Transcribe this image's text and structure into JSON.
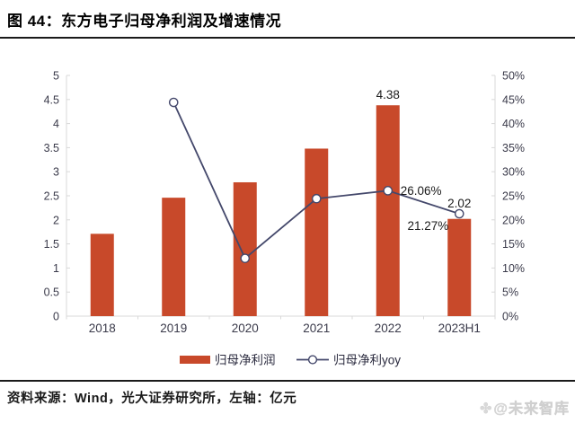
{
  "header": {
    "figure_label": "图 44：东方电子归母净利润及增速情况"
  },
  "footer": {
    "source": "资料来源：Wind，光大证券研究所，左轴：亿元",
    "watermark_icon_char": "✤",
    "watermark_text": "@未来智库"
  },
  "chart_data": {
    "type": "bar",
    "subtype": "bar+line-dual-axis",
    "categories": [
      "2018",
      "2019",
      "2020",
      "2021",
      "2022",
      "2023H1"
    ],
    "series": [
      {
        "name": "归母净利润",
        "type": "bar",
        "axis": "left",
        "color": "#C8492A",
        "values": [
          1.71,
          2.46,
          2.78,
          3.48,
          4.38,
          2.02
        ],
        "point_labels": [
          null,
          null,
          null,
          null,
          "4.38",
          "2.02"
        ]
      },
      {
        "name": "归母净利yoy",
        "type": "line",
        "axis": "right",
        "color": "#44486B",
        "marker": "open-circle",
        "values": [
          null,
          44.4,
          12.0,
          24.4,
          26.06,
          21.27
        ],
        "point_labels": [
          null,
          null,
          null,
          null,
          "26.06%",
          "21.27%"
        ]
      }
    ],
    "left_axis": {
      "min": 0,
      "max": 5,
      "step": 0.5,
      "unit": "亿元"
    },
    "right_axis": {
      "min": 0,
      "max": 50,
      "step": 5,
      "suffix": "%"
    },
    "grid": false,
    "legend_position": "bottom",
    "axis_color": "#d9d9d9",
    "tick_label_color": "#3a3a4a",
    "data_label_color": "#1a1a1a"
  }
}
